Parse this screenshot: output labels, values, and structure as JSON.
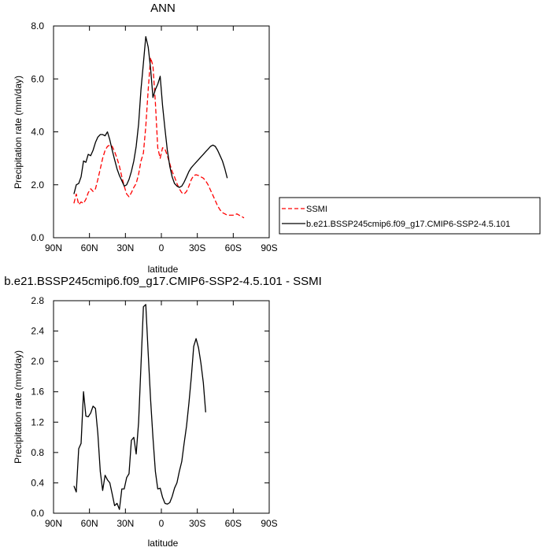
{
  "chart_data": [
    {
      "type": "line",
      "title": "ANN",
      "xlabel": "latitude",
      "ylabel": "Precipitation rate (mm/day)",
      "xlim": [
        90,
        -90
      ],
      "ylim": [
        0.0,
        8.0
      ],
      "x_ticks": [
        {
          "value": 90,
          "label": "90N"
        },
        {
          "value": 60,
          "label": "60N"
        },
        {
          "value": 30,
          "label": "30N"
        },
        {
          "value": 0,
          "label": "0"
        },
        {
          "value": -30,
          "label": "30S"
        },
        {
          "value": -60,
          "label": "60S"
        },
        {
          "value": -90,
          "label": "90S"
        }
      ],
      "y_ticks": [
        {
          "value": 0.0,
          "label": "0.0"
        },
        {
          "value": 2.0,
          "label": "2.0"
        },
        {
          "value": 4.0,
          "label": "4.0"
        },
        {
          "value": 6.0,
          "label": "6.0"
        },
        {
          "value": 8.0,
          "label": "8.0"
        }
      ],
      "legend_position": "right",
      "series": [
        {
          "name": "SSMI",
          "color": "#ff0000",
          "dash": "dashed",
          "points": [
            [
              73,
              1.3
            ],
            [
              71,
              1.65
            ],
            [
              69,
              1.25
            ],
            [
              67,
              1.35
            ],
            [
              65,
              1.3
            ],
            [
              63,
              1.45
            ],
            [
              61,
              1.7
            ],
            [
              59,
              1.85
            ],
            [
              57,
              1.75
            ],
            [
              55,
              1.85
            ],
            [
              53,
              2.2
            ],
            [
              51,
              2.6
            ],
            [
              49,
              3.0
            ],
            [
              47,
              3.3
            ],
            [
              45,
              3.45
            ],
            [
              43,
              3.5
            ],
            [
              41,
              3.45
            ],
            [
              39,
              3.25
            ],
            [
              37,
              3.0
            ],
            [
              35,
              2.7
            ],
            [
              33,
              2.3
            ],
            [
              31,
              1.95
            ],
            [
              29,
              1.65
            ],
            [
              27,
              1.55
            ],
            [
              25,
              1.7
            ],
            [
              23,
              1.9
            ],
            [
              21,
              2.05
            ],
            [
              19,
              2.4
            ],
            [
              17,
              2.9
            ],
            [
              15,
              3.2
            ],
            [
              13,
              4.2
            ],
            [
              11,
              5.6
            ],
            [
              9,
              6.8
            ],
            [
              7,
              6.5
            ],
            [
              5,
              5.1
            ],
            [
              3,
              3.4
            ],
            [
              1,
              3.0
            ],
            [
              -1,
              3.4
            ],
            [
              -3,
              3.35
            ],
            [
              -5,
              3.1
            ],
            [
              -7,
              2.8
            ],
            [
              -9,
              2.5
            ],
            [
              -11,
              2.3
            ],
            [
              -13,
              2.05
            ],
            [
              -15,
              1.85
            ],
            [
              -17,
              1.7
            ],
            [
              -19,
              1.65
            ],
            [
              -21,
              1.75
            ],
            [
              -23,
              1.95
            ],
            [
              -25,
              2.2
            ],
            [
              -27,
              2.35
            ],
            [
              -29,
              2.38
            ],
            [
              -31,
              2.35
            ],
            [
              -33,
              2.3
            ],
            [
              -35,
              2.25
            ],
            [
              -37,
              2.15
            ],
            [
              -39,
              2.0
            ],
            [
              -41,
              1.8
            ],
            [
              -43,
              1.6
            ],
            [
              -45,
              1.4
            ],
            [
              -47,
              1.2
            ],
            [
              -49,
              1.05
            ],
            [
              -51,
              0.95
            ],
            [
              -53,
              0.9
            ],
            [
              -55,
              0.85
            ],
            [
              -57,
              0.85
            ],
            [
              -59,
              0.85
            ],
            [
              -61,
              0.85
            ],
            [
              -63,
              0.9
            ],
            [
              -65,
              0.85
            ],
            [
              -67,
              0.8
            ],
            [
              -69,
              0.75
            ]
          ]
        },
        {
          "name": "b.e21.BSSP245cmip6.f09_g17.CMIP6-SSP2-4.5.101",
          "color": "#000000",
          "dash": "solid",
          "points": [
            [
              73,
              1.65
            ],
            [
              71,
              2.0
            ],
            [
              69,
              2.05
            ],
            [
              67,
              2.3
            ],
            [
              65,
              2.9
            ],
            [
              63,
              2.85
            ],
            [
              61,
              3.15
            ],
            [
              59,
              3.1
            ],
            [
              57,
              3.3
            ],
            [
              55,
              3.6
            ],
            [
              53,
              3.8
            ],
            [
              51,
              3.9
            ],
            [
              49,
              3.9
            ],
            [
              47,
              3.85
            ],
            [
              45,
              4.0
            ],
            [
              43,
              3.7
            ],
            [
              41,
              3.3
            ],
            [
              39,
              2.95
            ],
            [
              37,
              2.6
            ],
            [
              35,
              2.35
            ],
            [
              33,
              2.15
            ],
            [
              31,
              1.95
            ],
            [
              29,
              2.0
            ],
            [
              27,
              2.2
            ],
            [
              25,
              2.5
            ],
            [
              23,
              2.9
            ],
            [
              21,
              3.45
            ],
            [
              19,
              4.3
            ],
            [
              17,
              5.6
            ],
            [
              15,
              6.6
            ],
            [
              13,
              7.6
            ],
            [
              11,
              7.2
            ],
            [
              9,
              6.4
            ],
            [
              7,
              5.3
            ],
            [
              5,
              5.6
            ],
            [
              3,
              5.8
            ],
            [
              1,
              6.1
            ],
            [
              -1,
              5.0
            ],
            [
              -3,
              4.1
            ],
            [
              -5,
              3.3
            ],
            [
              -7,
              2.7
            ],
            [
              -9,
              2.3
            ],
            [
              -11,
              2.05
            ],
            [
              -13,
              1.95
            ],
            [
              -15,
              1.9
            ],
            [
              -17,
              1.95
            ],
            [
              -19,
              2.1
            ],
            [
              -21,
              2.3
            ],
            [
              -23,
              2.5
            ],
            [
              -25,
              2.65
            ],
            [
              -27,
              2.75
            ],
            [
              -29,
              2.85
            ],
            [
              -31,
              2.95
            ],
            [
              -33,
              3.05
            ],
            [
              -35,
              3.15
            ],
            [
              -37,
              3.25
            ],
            [
              -39,
              3.35
            ],
            [
              -41,
              3.45
            ],
            [
              -43,
              3.5
            ],
            [
              -45,
              3.45
            ],
            [
              -47,
              3.3
            ],
            [
              -49,
              3.1
            ],
            [
              -51,
              2.9
            ],
            [
              -53,
              2.6
            ],
            [
              -55,
              2.25
            ]
          ]
        }
      ]
    },
    {
      "type": "line",
      "title": "b.e21.BSSP245cmip6.f09_g17.CMIP6-SSP2-4.5.101 - SSMI",
      "xlabel": "latitude",
      "ylabel": "Precipitation rate (mm/day)",
      "xlim": [
        90,
        -90
      ],
      "ylim": [
        0.0,
        2.8
      ],
      "x_ticks": [
        {
          "value": 90,
          "label": "90N"
        },
        {
          "value": 60,
          "label": "60N"
        },
        {
          "value": 30,
          "label": "30N"
        },
        {
          "value": 0,
          "label": "0"
        },
        {
          "value": -30,
          "label": "30S"
        },
        {
          "value": -60,
          "label": "60S"
        },
        {
          "value": -90,
          "label": "90S"
        }
      ],
      "y_ticks": [
        {
          "value": 0.0,
          "label": "0.0"
        },
        {
          "value": 0.4,
          "label": "0.4"
        },
        {
          "value": 0.8,
          "label": "0.8"
        },
        {
          "value": 1.2,
          "label": "1.2"
        },
        {
          "value": 1.6,
          "label": "1.6"
        },
        {
          "value": 2.0,
          "label": "2.0"
        },
        {
          "value": 2.4,
          "label": "2.4"
        },
        {
          "value": 2.8,
          "label": "2.8"
        }
      ],
      "series": [
        {
          "color": "#000000",
          "dash": "solid",
          "points": [
            [
              73,
              0.36
            ],
            [
              71,
              0.28
            ],
            [
              69,
              0.85
            ],
            [
              67,
              0.92
            ],
            [
              65,
              1.6
            ],
            [
              63,
              1.28
            ],
            [
              61,
              1.27
            ],
            [
              59,
              1.32
            ],
            [
              57,
              1.41
            ],
            [
              55,
              1.38
            ],
            [
              53,
              1.05
            ],
            [
              51,
              0.55
            ],
            [
              49,
              0.3
            ],
            [
              47,
              0.5
            ],
            [
              45,
              0.44
            ],
            [
              43,
              0.4
            ],
            [
              41,
              0.25
            ],
            [
              39,
              0.1
            ],
            [
              37,
              0.13
            ],
            [
              35,
              0.05
            ],
            [
              33,
              0.32
            ],
            [
              31,
              0.32
            ],
            [
              29,
              0.47
            ],
            [
              27,
              0.52
            ],
            [
              25,
              0.96
            ],
            [
              23,
              1.0
            ],
            [
              21,
              0.78
            ],
            [
              19,
              1.2
            ],
            [
              17,
              1.95
            ],
            [
              15,
              2.72
            ],
            [
              13,
              2.75
            ],
            [
              11,
              2.1
            ],
            [
              9,
              1.5
            ],
            [
              7,
              1.0
            ],
            [
              5,
              0.55
            ],
            [
              3,
              0.32
            ],
            [
              1,
              0.33
            ],
            [
              -1,
              0.21
            ],
            [
              -3,
              0.13
            ],
            [
              -5,
              0.12
            ],
            [
              -7,
              0.14
            ],
            [
              -9,
              0.22
            ],
            [
              -11,
              0.33
            ],
            [
              -13,
              0.4
            ],
            [
              -15,
              0.55
            ],
            [
              -17,
              0.68
            ],
            [
              -19,
              0.92
            ],
            [
              -21,
              1.15
            ],
            [
              -23,
              1.45
            ],
            [
              -25,
              1.8
            ],
            [
              -27,
              2.2
            ],
            [
              -29,
              2.3
            ],
            [
              -31,
              2.18
            ],
            [
              -33,
              1.98
            ],
            [
              -35,
              1.72
            ],
            [
              -37,
              1.33
            ]
          ]
        }
      ]
    }
  ]
}
